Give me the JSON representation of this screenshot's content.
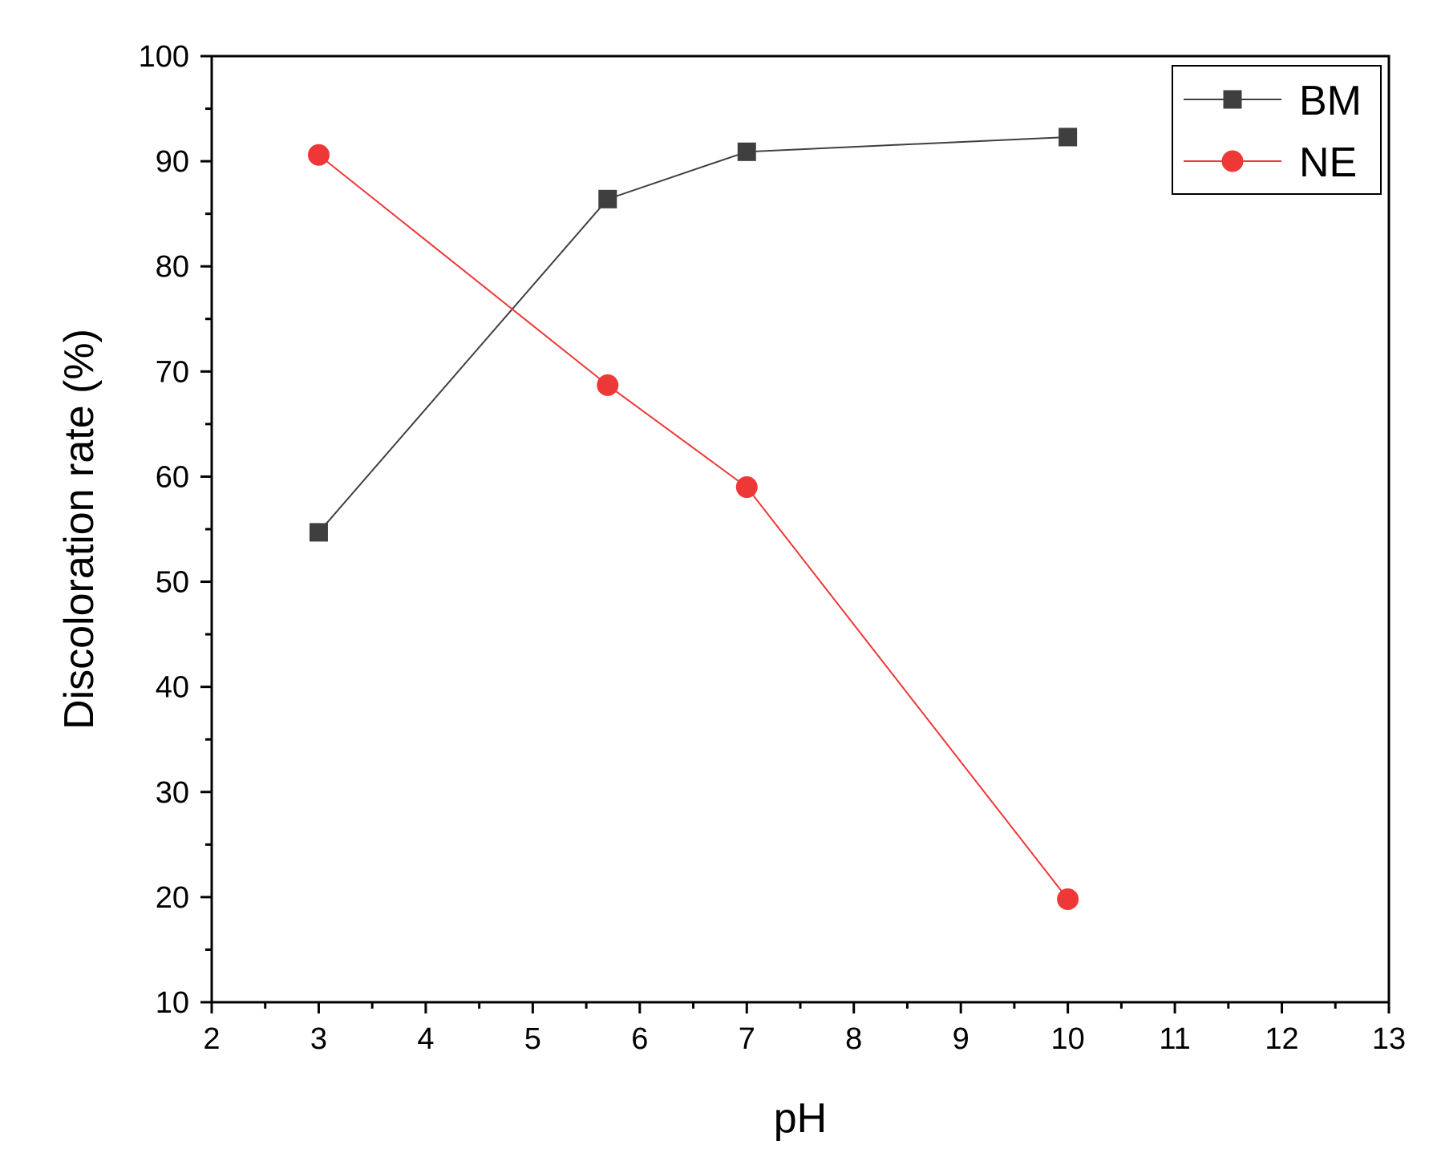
{
  "chart_data": {
    "type": "line",
    "xlabel": "pH",
    "ylabel": "Discoloration rate (%)",
    "xlim": [
      2,
      13
    ],
    "ylim": [
      10,
      100
    ],
    "x_ticks": [
      "2",
      "3",
      "4",
      "5",
      "6",
      "7",
      "8",
      "9",
      "10",
      "11",
      "12",
      "13"
    ],
    "y_ticks": [
      "10",
      "20",
      "30",
      "40",
      "50",
      "60",
      "70",
      "80",
      "90",
      "100"
    ],
    "grid": false,
    "legend_position": "top-right",
    "series": [
      {
        "name": "BM",
        "color": "#3f3f3f",
        "marker": "square",
        "x": [
          3,
          5.7,
          7,
          10
        ],
        "y": [
          54.7,
          86.4,
          90.9,
          92.3
        ]
      },
      {
        "name": "NE",
        "color": "#ee3737",
        "marker": "circle",
        "x": [
          3,
          5.7,
          7,
          10
        ],
        "y": [
          90.6,
          68.7,
          59.0,
          19.8
        ]
      }
    ]
  }
}
